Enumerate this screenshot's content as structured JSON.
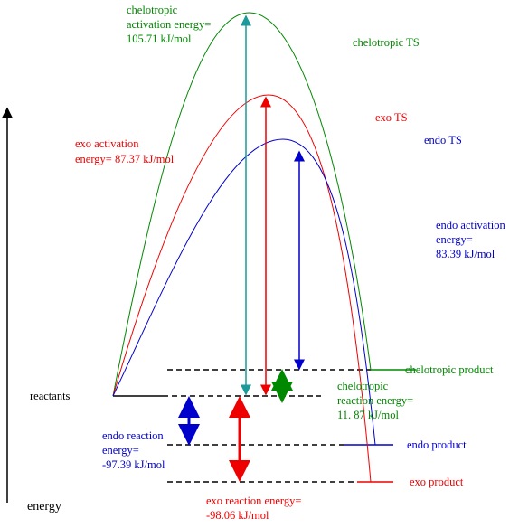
{
  "labels": {
    "chelotropic_activation": [
      "chelotropic",
      "activation energy=",
      "105.71 kJ/mol"
    ],
    "chelotropic_ts": "chelotropic TS",
    "exo_ts": "exo TS",
    "endo_ts": "endo TS",
    "exo_activation": [
      "exo activation",
      "energy= 87.37 kJ/mol"
    ],
    "endo_activation": [
      "endo activation",
      "energy=",
      "83.39 kJ/mol"
    ],
    "reactants": "reactants",
    "chelotropic_product": "chelotropic product",
    "chelotropic_reaction": [
      "chelotropic",
      "reaction energy=",
      "11. 87 kJ/mol"
    ],
    "endo_reaction": [
      "endo reaction",
      "energy=",
      "-97.39 kJ/mol"
    ],
    "endo_product": "endo product",
    "exo_reaction": [
      "exo reaction energy=",
      "-98.06 kJ/mol"
    ],
    "exo_product": "exo product",
    "axis": "energy"
  }
}
